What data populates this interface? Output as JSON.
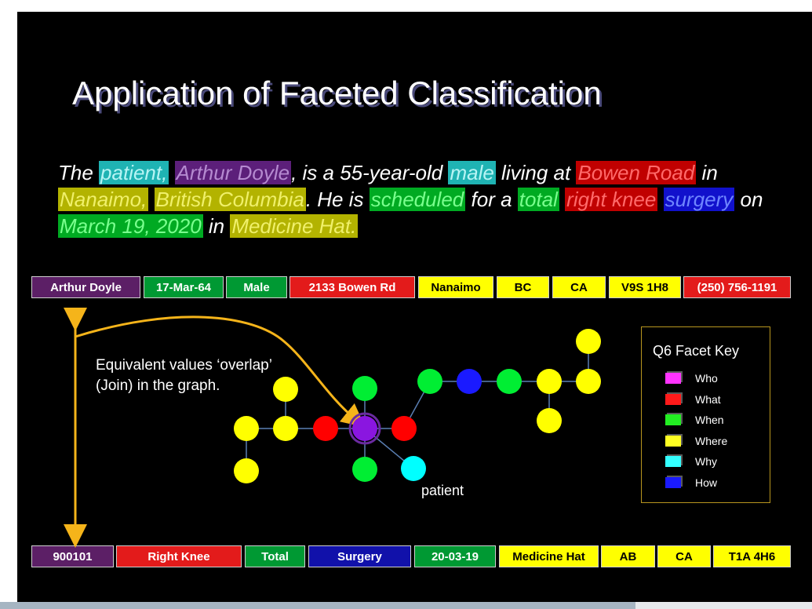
{
  "title": "Application of Faceted Classification",
  "sentence": [
    {
      "text": "The ",
      "facet": ""
    },
    {
      "text": "patient,",
      "facet": "why"
    },
    {
      "text": " ",
      "facet": ""
    },
    {
      "text": "Arthur Doyle",
      "facet": "who"
    },
    {
      "text": ", is a 55-year-old ",
      "facet": ""
    },
    {
      "text": "male",
      "facet": "why"
    },
    {
      "text": " living at ",
      "facet": ""
    },
    {
      "text": "Bowen Road",
      "facet": "what"
    },
    {
      "text": " in ",
      "facet": ""
    },
    {
      "text": "Nanaimo,",
      "facet": "where"
    },
    {
      "text": " ",
      "facet": ""
    },
    {
      "text": "British Columbia",
      "facet": "where"
    },
    {
      "text": ". He is ",
      "facet": ""
    },
    {
      "text": "scheduled",
      "facet": "when"
    },
    {
      "text": " for a ",
      "facet": ""
    },
    {
      "text": "total",
      "facet": "when"
    },
    {
      "text": " ",
      "facet": ""
    },
    {
      "text": "right knee",
      "facet": "what"
    },
    {
      "text": " ",
      "facet": ""
    },
    {
      "text": "surgery",
      "facet": "how"
    },
    {
      "text": " on ",
      "facet": ""
    },
    {
      "text": "March 19, 2020",
      "facet": "when"
    },
    {
      "text": " in ",
      "facet": ""
    },
    {
      "text": "Medicine Hat.",
      "facet": "where"
    }
  ],
  "record_top": [
    {
      "text": "Arthur Doyle",
      "facet": "who"
    },
    {
      "text": "17-Mar-64",
      "facet": "when"
    },
    {
      "text": "Male",
      "facet": "when"
    },
    {
      "text": "2133  Bowen Rd",
      "facet": "what"
    },
    {
      "text": "Nanaimo",
      "facet": "where"
    },
    {
      "text": "BC",
      "facet": "where"
    },
    {
      "text": "CA",
      "facet": "where"
    },
    {
      "text": "V9S 1H8",
      "facet": "where"
    },
    {
      "text": "(250) 756-1191",
      "facet": "what"
    }
  ],
  "record_bottom": [
    {
      "text": "900101",
      "facet": "who"
    },
    {
      "text": "Right Knee",
      "facet": "what"
    },
    {
      "text": "Total",
      "facet": "when"
    },
    {
      "text": "Surgery",
      "facet": "how"
    },
    {
      "text": "20-03-19",
      "facet": "when"
    },
    {
      "text": "Medicine Hat",
      "facet": "where"
    },
    {
      "text": "AB",
      "facet": "where"
    },
    {
      "text": "CA",
      "facet": "where"
    },
    {
      "text": "T1A 4H6",
      "facet": "where"
    }
  ],
  "overlap_text": "Equivalent values ‘overlap’ (Join) in the graph.",
  "patient_label": "patient",
  "facet_key": {
    "title": "Q6 Facet Key",
    "items": [
      {
        "label": "Who",
        "color": "#ff33ff"
      },
      {
        "label": "What",
        "color": "#ff1a1a"
      },
      {
        "label": "When",
        "color": "#22ee22"
      },
      {
        "label": "Where",
        "color": "#ffff22"
      },
      {
        "label": "Why",
        "color": "#33ffff"
      },
      {
        "label": "How",
        "color": "#1a1aff"
      }
    ]
  },
  "colors": {
    "arrow": "#f5b41a",
    "edge": "#5a7fb3",
    "node_yellow": "#ffff00",
    "node_red": "#ff0000",
    "node_green": "#00ee33",
    "node_blue": "#1a1aff",
    "node_purple": "#8a16e0",
    "node_cyan": "#00ffff"
  }
}
